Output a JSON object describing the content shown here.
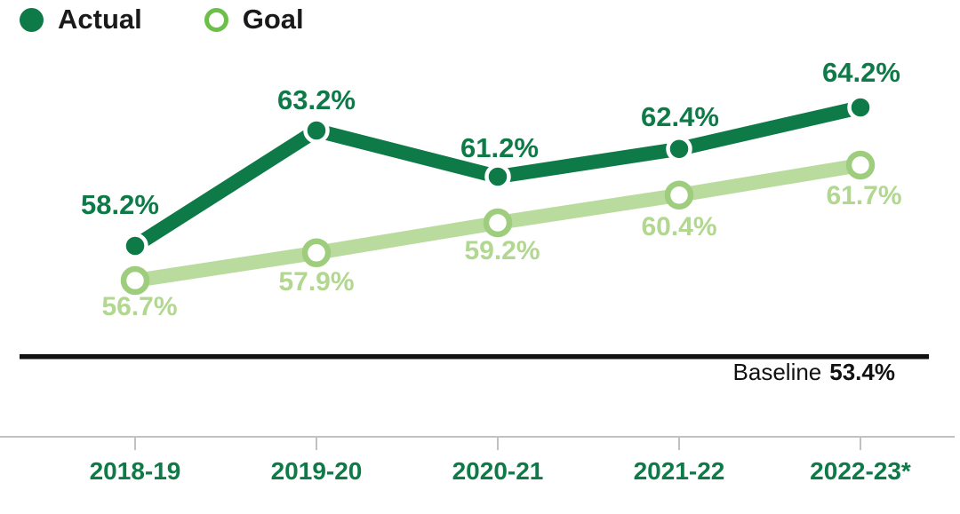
{
  "chart_data": {
    "type": "line",
    "title": "",
    "categories": [
      "2018-19",
      "2019-20",
      "2020-21",
      "2021-22",
      "2022-23*"
    ],
    "series": [
      {
        "name": "Actual",
        "values": [
          58.2,
          63.2,
          61.2,
          62.4,
          64.2
        ],
        "point_labels": [
          "58.2%",
          "63.2%",
          "61.2%",
          "62.4%",
          "64.2%"
        ],
        "color": "#0e7a48",
        "marker": "filled-circle-white-ring",
        "label_color": "#0e7a48",
        "label_offsets": [
          [
            -17,
            -46
          ],
          [
            0,
            -34
          ],
          [
            2,
            -32
          ],
          [
            1,
            -36
          ],
          [
            1,
            -39
          ]
        ]
      },
      {
        "name": "Goal",
        "values": [
          56.7,
          57.9,
          59.2,
          60.4,
          61.7
        ],
        "point_labels": [
          "56.7%",
          "57.9%",
          "59.2%",
          "60.4%",
          "61.7%"
        ],
        "color": "#badb9e",
        "marker": "open-circle",
        "marker_ring_color": "#9ecd7e",
        "label_color": "#b2d790",
        "label_offsets": [
          [
            5,
            29
          ],
          [
            0,
            32
          ],
          [
            5,
            31
          ],
          [
            0,
            35
          ],
          [
            4,
            34
          ]
        ]
      }
    ],
    "baseline": {
      "label": "Baseline",
      "value": 53.4,
      "value_label": "53.4%"
    },
    "axis": {
      "line_color": "#c1c1c1",
      "tick_label_color": "#0e7a48"
    },
    "legend_position": "top-left",
    "legend_goal_ring_color": "#6cbf47",
    "ylim": [
      53.4,
      66
    ],
    "grid": false
  }
}
